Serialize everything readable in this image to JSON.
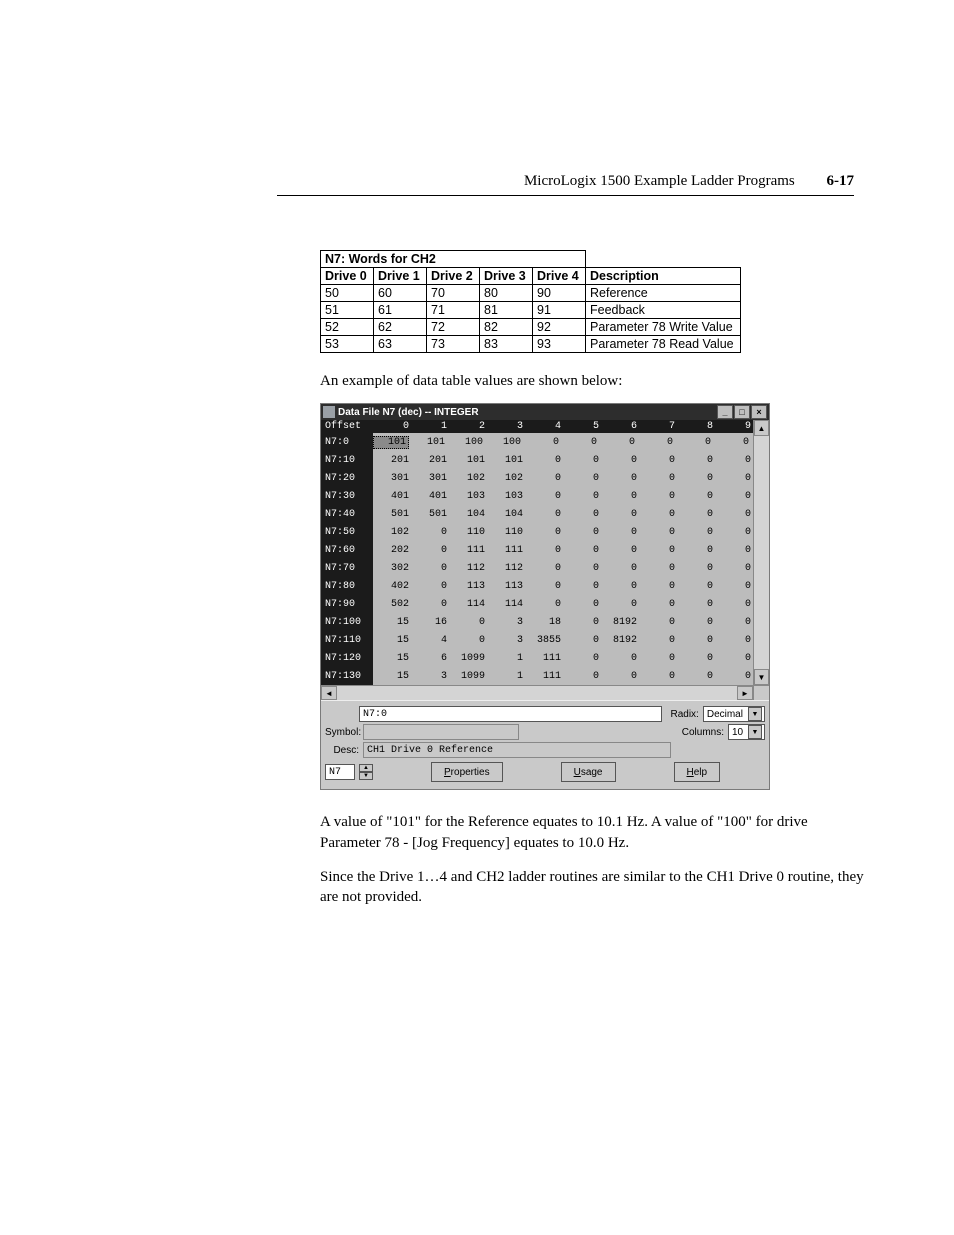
{
  "header": {
    "title": "MicroLogix 1500 Example Ladder Programs",
    "pagenum": "6-17"
  },
  "wordsTable": {
    "groupTitle": "N7: Words for CH2",
    "headers": [
      "Drive 0",
      "Drive 1",
      "Drive 2",
      "Drive 3",
      "Drive 4",
      "Description"
    ],
    "rows": [
      [
        "50",
        "60",
        "70",
        "80",
        "90",
        "Reference"
      ],
      [
        "51",
        "61",
        "71",
        "81",
        "91",
        "Feedback"
      ],
      [
        "52",
        "62",
        "72",
        "82",
        "92",
        "Parameter 78 Write Value"
      ],
      [
        "53",
        "63",
        "73",
        "83",
        "93",
        "Parameter 78 Read Value"
      ]
    ]
  },
  "intro": "An example of data table values are shown below:",
  "window": {
    "title": "Data File N7 (dec)  --  INTEGER",
    "offsetHdr": "Offset",
    "cols": [
      "0",
      "1",
      "2",
      "3",
      "4",
      "5",
      "6",
      "7",
      "8",
      "9"
    ],
    "rows": [
      {
        "off": "N7:0",
        "v": [
          "101",
          "101",
          "100",
          "100",
          "0",
          "0",
          "0",
          "0",
          "0",
          "0"
        ]
      },
      {
        "off": "N7:10",
        "v": [
          "201",
          "201",
          "101",
          "101",
          "0",
          "0",
          "0",
          "0",
          "0",
          "0"
        ]
      },
      {
        "off": "N7:20",
        "v": [
          "301",
          "301",
          "102",
          "102",
          "0",
          "0",
          "0",
          "0",
          "0",
          "0"
        ]
      },
      {
        "off": "N7:30",
        "v": [
          "401",
          "401",
          "103",
          "103",
          "0",
          "0",
          "0",
          "0",
          "0",
          "0"
        ]
      },
      {
        "off": "N7:40",
        "v": [
          "501",
          "501",
          "104",
          "104",
          "0",
          "0",
          "0",
          "0",
          "0",
          "0"
        ]
      },
      {
        "off": "N7:50",
        "v": [
          "102",
          "0",
          "110",
          "110",
          "0",
          "0",
          "0",
          "0",
          "0",
          "0"
        ]
      },
      {
        "off": "N7:60",
        "v": [
          "202",
          "0",
          "111",
          "111",
          "0",
          "0",
          "0",
          "0",
          "0",
          "0"
        ]
      },
      {
        "off": "N7:70",
        "v": [
          "302",
          "0",
          "112",
          "112",
          "0",
          "0",
          "0",
          "0",
          "0",
          "0"
        ]
      },
      {
        "off": "N7:80",
        "v": [
          "402",
          "0",
          "113",
          "113",
          "0",
          "0",
          "0",
          "0",
          "0",
          "0"
        ]
      },
      {
        "off": "N7:90",
        "v": [
          "502",
          "0",
          "114",
          "114",
          "0",
          "0",
          "0",
          "0",
          "0",
          "0"
        ]
      },
      {
        "off": "N7:100",
        "v": [
          "15",
          "16",
          "0",
          "3",
          "18",
          "0",
          "8192",
          "0",
          "0",
          "0"
        ]
      },
      {
        "off": "N7:110",
        "v": [
          "15",
          "4",
          "0",
          "3",
          "3855",
          "0",
          "8192",
          "0",
          "0",
          "0"
        ]
      },
      {
        "off": "N7:120",
        "v": [
          "15",
          "6",
          "1099",
          "1",
          "111",
          "0",
          "0",
          "0",
          "0",
          "0"
        ]
      },
      {
        "off": "N7:130",
        "v": [
          "15",
          "3",
          "1099",
          "1",
          "111",
          "0",
          "0",
          "0",
          "0",
          "0"
        ]
      }
    ],
    "addr": "N7:0",
    "radixLabel": "Radix:",
    "radix": "Decimal",
    "symbolLabel": "Symbol:",
    "columnsLabel": "Columns:",
    "columns": "10",
    "descLabel": "Desc:",
    "desc": "CH1 Drive 0 Reference",
    "fileBox": "N7",
    "btnProps": "Properties",
    "btnUsage": "Usage",
    "btnHelp": "Help"
  },
  "para1": "A value of \"101\" for the Reference equates to 10.1 Hz. A value of \"100\" for drive Parameter 78 - [Jog Frequency] equates to 10.0 Hz.",
  "para2": "Since the Drive 1…4 and CH2 ladder routines are similar to the CH1 Drive 0 routine, they are not provided."
}
